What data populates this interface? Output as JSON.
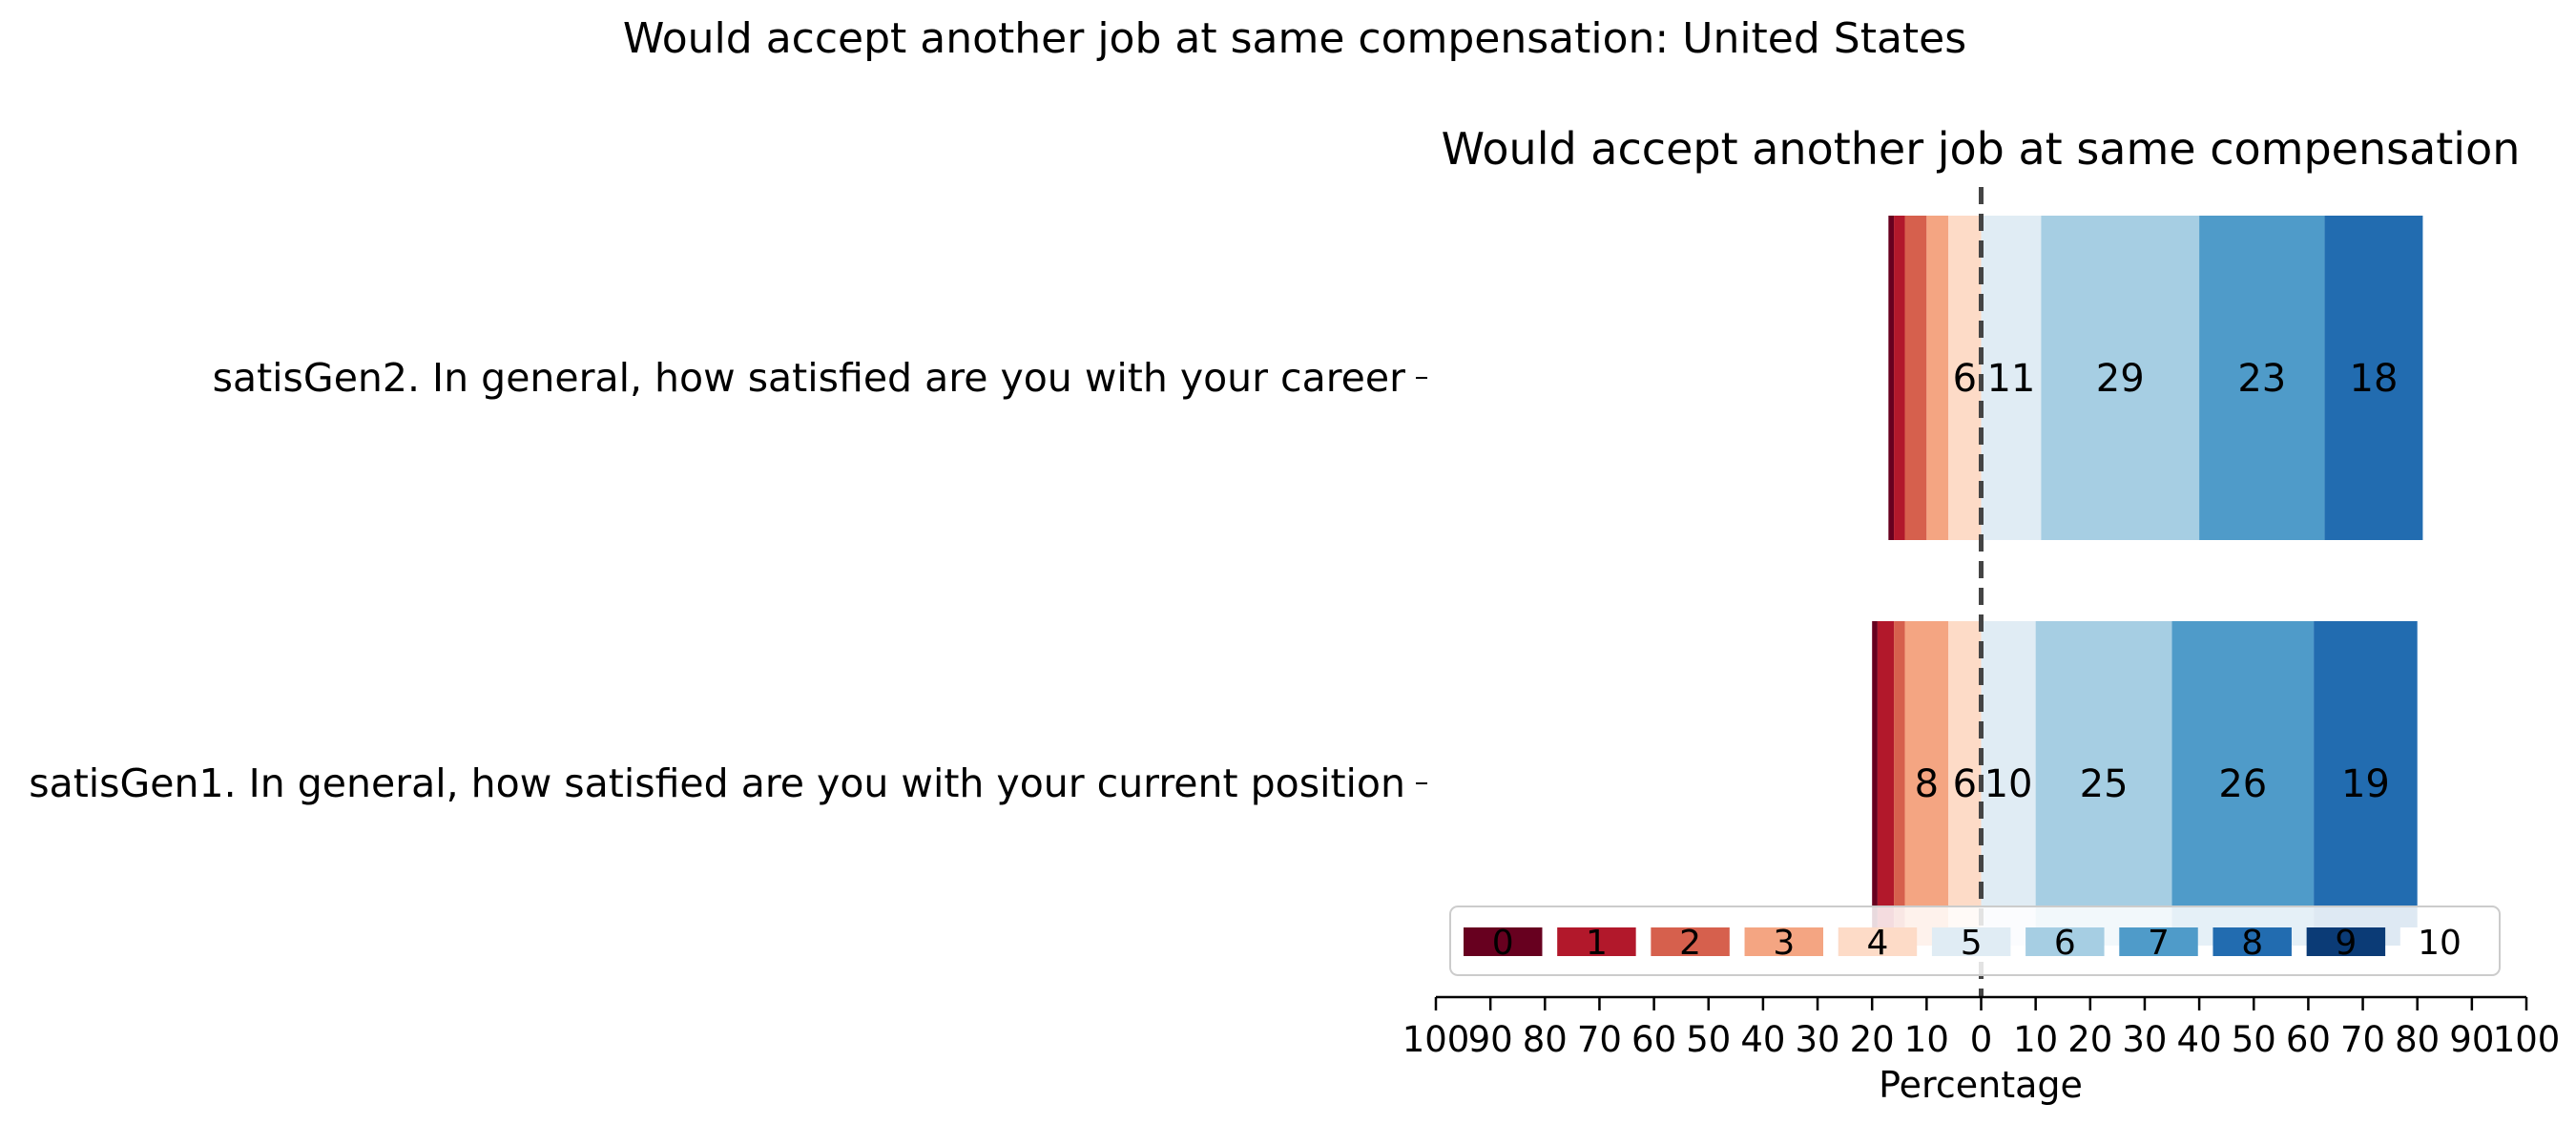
{
  "chart_data": {
    "type": "bar",
    "orientation": "horizontal",
    "stacked": "diverging",
    "suptitle": "Would accept another job at same compensation: United States",
    "title": "Would accept another job at same compensation",
    "xlabel": "Percentage",
    "xlim": [
      -100,
      100
    ],
    "xticks": [
      -100,
      -90,
      -80,
      -70,
      -60,
      -50,
      -40,
      -30,
      -20,
      -10,
      0,
      10,
      20,
      30,
      40,
      50,
      60,
      70,
      80,
      90,
      100
    ],
    "xtick_labels": [
      "100",
      "90",
      "80",
      "70",
      "60",
      "50",
      "40",
      "30",
      "20",
      "10",
      "0",
      "10",
      "20",
      "30",
      "40",
      "50",
      "60",
      "70",
      "80",
      "90",
      "100"
    ],
    "center_line": 0,
    "categories": [
      "satisGen2. In general, how satisfied are you with your career",
      "satisGen1. In general, how satisfied are you with your current position"
    ],
    "legend": {
      "placement": "bottom-right",
      "entries": [
        "0",
        "1",
        "2",
        "3",
        "4",
        "5",
        "6",
        "7",
        "8",
        "9",
        "10"
      ]
    },
    "series": [
      {
        "name": "0",
        "color": "#67001f",
        "values": [
          1,
          1
        ],
        "labels": [
          "",
          ""
        ]
      },
      {
        "name": "1",
        "color": "#b2182b",
        "values": [
          2,
          3
        ],
        "labels": [
          "",
          ""
        ]
      },
      {
        "name": "2",
        "color": "#d6604d",
        "values": [
          4,
          2
        ],
        "labels": [
          "",
          ""
        ]
      },
      {
        "name": "3",
        "color": "#f4a582",
        "values": [
          4,
          8
        ],
        "labels": [
          "",
          "8"
        ]
      },
      {
        "name": "4",
        "color": "#fddbc7",
        "values": [
          6,
          6
        ],
        "labels": [
          "6",
          "6"
        ]
      },
      {
        "name": "5",
        "color": "#e0ecf4",
        "values": [
          11,
          10
        ],
        "labels": [
          "11",
          "10"
        ]
      },
      {
        "name": "6",
        "color": "#a6cee3",
        "values": [
          29,
          25
        ],
        "labels": [
          "29",
          "25"
        ]
      },
      {
        "name": "7",
        "color": "#4f9bc9",
        "values": [
          23,
          26
        ],
        "labels": [
          "23",
          "26"
        ]
      },
      {
        "name": "8",
        "color": "#226cb0",
        "values": [
          18,
          19
        ],
        "labels": [
          "18",
          "19"
        ]
      },
      {
        "name": "9",
        "color": "#0b3b76",
        "values": [
          0,
          0
        ],
        "labels": [
          "",
          ""
        ]
      },
      {
        "name": "10",
        "color": "#ffffff",
        "values": [
          0,
          0
        ],
        "labels": [
          "",
          ""
        ]
      }
    ]
  }
}
